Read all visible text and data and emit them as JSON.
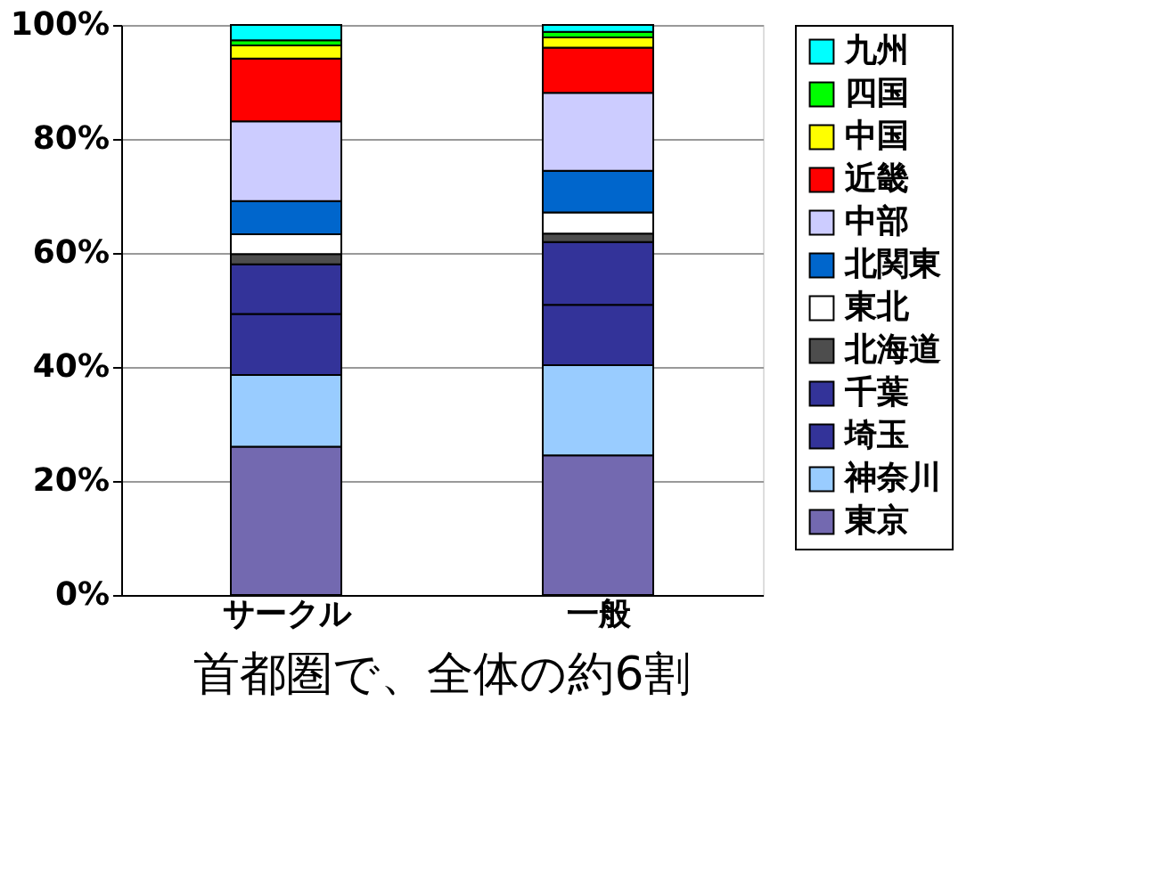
{
  "chart_data": {
    "type": "bar",
    "stacked": true,
    "categories": [
      "サークル",
      "一般"
    ],
    "series": [
      {
        "name": "東京",
        "color": "#7369b0",
        "values": [
          26,
          24.5
        ]
      },
      {
        "name": "神奈川",
        "color": "#99ccff",
        "values": [
          12.6,
          15.8
        ]
      },
      {
        "name": "埼玉",
        "color": "#333399",
        "values": [
          10.7,
          10.6
        ]
      },
      {
        "name": "千葉",
        "color": "#333399",
        "values": [
          8.7,
          11.0
        ]
      },
      {
        "name": "北海道",
        "color": "#4d4d4d",
        "values": [
          1.8,
          1.5
        ]
      },
      {
        "name": "東北",
        "color": "#ffffff",
        "values": [
          3.5,
          3.7
        ]
      },
      {
        "name": "北関東",
        "color": "#0066cc",
        "values": [
          5.8,
          7.3
        ]
      },
      {
        "name": "中部",
        "color": "#ccccff",
        "values": [
          14,
          13.7
        ]
      },
      {
        "name": "近畿",
        "color": "#ff0000",
        "values": [
          11,
          7.9
        ]
      },
      {
        "name": "中国",
        "color": "#ffff00",
        "values": [
          2.3,
          1.8
        ]
      },
      {
        "name": "四国",
        "color": "#00ff00",
        "values": [
          0.9,
          1.0
        ]
      },
      {
        "name": "九州",
        "color": "#00ffff",
        "values": [
          2.7,
          1.2
        ]
      }
    ],
    "ylim": [
      0,
      100
    ],
    "yticks": [
      {
        "value": 0,
        "label": "0%"
      },
      {
        "value": 20,
        "label": "20%"
      },
      {
        "value": 40,
        "label": "40%"
      },
      {
        "value": 60,
        "label": "60%"
      },
      {
        "value": 80,
        "label": "80%"
      },
      {
        "value": 100,
        "label": "100%"
      }
    ],
    "grid": "y",
    "legend": "right",
    "annotations": [
      "首都圏で、全体の約6割"
    ]
  }
}
